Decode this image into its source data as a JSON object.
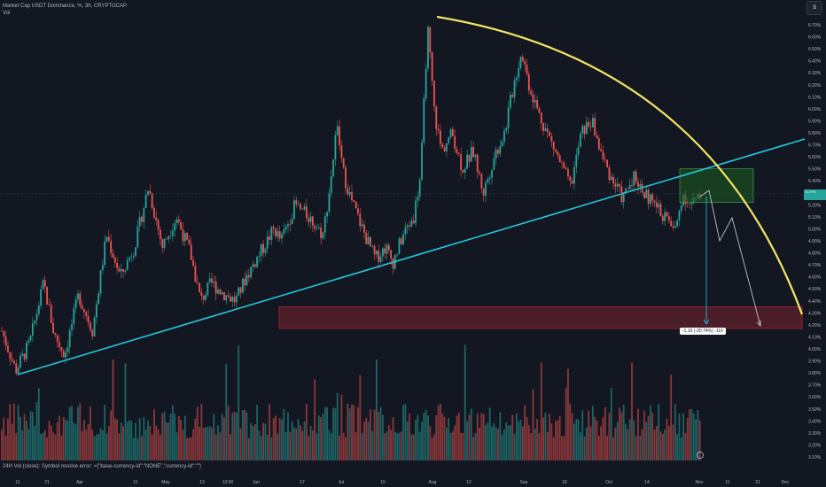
{
  "header": {
    "title": "Market Cap USDT Dominance, %, 3h, CRYPTOCAP",
    "vol_label": "Vol",
    "vol_error": "24H Vol (close): Symbol resolve error: ={\"base-currency-id\":\"NONE\",\"currency-id\":\"\"}",
    "corner_button": "$"
  },
  "chart_data": {
    "type": "candlestick",
    "title": "Market Cap USDT Dominance, %, 3h, CRYPTOCAP",
    "ylim": [
      3.05,
      6.8
    ],
    "y_ticks": [
      "6.70%",
      "6.60%",
      "6.50%",
      "6.40%",
      "6.30%",
      "6.20%",
      "6.10%",
      "6.00%",
      "5.90%",
      "5.80%",
      "5.70%",
      "5.60%",
      "5.50%",
      "5.40%",
      "5.30%",
      "5.20%",
      "5.10%",
      "5.00%",
      "4.90%",
      "4.80%",
      "4.70%",
      "4.60%",
      "4.50%",
      "4.40%",
      "4.30%",
      "4.20%",
      "4.10%",
      "4.00%",
      "3.90%",
      "3.80%",
      "3.70%",
      "3.60%",
      "3.50%",
      "3.40%",
      "3.30%",
      "3.20%",
      "3.10%"
    ],
    "x_ticks": [
      "11",
      "21",
      "Apr",
      "11",
      "May",
      "13",
      "12:00",
      "Jun",
      "17",
      "Jul",
      "15",
      "Aug",
      "12",
      "Sep",
      "16",
      "Oct",
      "14",
      "Nov",
      "11",
      "21",
      "Dec"
    ],
    "price_path": [
      [
        0,
        4.15
      ],
      [
        0.02,
        3.82
      ],
      [
        0.04,
        4.05
      ],
      [
        0.06,
        4.55
      ],
      [
        0.075,
        4.12
      ],
      [
        0.09,
        3.95
      ],
      [
        0.11,
        4.45
      ],
      [
        0.13,
        4.15
      ],
      [
        0.15,
        4.95
      ],
      [
        0.17,
        4.6
      ],
      [
        0.19,
        4.85
      ],
      [
        0.21,
        5.35
      ],
      [
        0.23,
        4.85
      ],
      [
        0.25,
        5.1
      ],
      [
        0.27,
        4.8
      ],
      [
        0.285,
        4.4
      ],
      [
        0.3,
        4.55
      ],
      [
        0.32,
        4.45
      ],
      [
        0.335,
        4.4
      ],
      [
        0.35,
        4.6
      ],
      [
        0.37,
        4.8
      ],
      [
        0.39,
        5.0
      ],
      [
        0.4,
        4.9
      ],
      [
        0.42,
        5.2
      ],
      [
        0.44,
        5.1
      ],
      [
        0.46,
        4.95
      ],
      [
        0.47,
        5.35
      ],
      [
        0.48,
        5.85
      ],
      [
        0.49,
        5.45
      ],
      [
        0.5,
        5.25
      ],
      [
        0.52,
        4.95
      ],
      [
        0.535,
        4.75
      ],
      [
        0.55,
        4.85
      ],
      [
        0.56,
        4.72
      ],
      [
        0.575,
        4.95
      ],
      [
        0.59,
        5.1
      ],
      [
        0.6,
        5.45
      ],
      [
        0.61,
        6.68
      ],
      [
        0.62,
        5.95
      ],
      [
        0.63,
        5.65
      ],
      [
        0.645,
        5.8
      ],
      [
        0.66,
        5.5
      ],
      [
        0.675,
        5.65
      ],
      [
        0.69,
        5.3
      ],
      [
        0.705,
        5.6
      ],
      [
        0.72,
        5.8
      ],
      [
        0.735,
        6.25
      ],
      [
        0.745,
        6.48
      ],
      [
        0.755,
        6.2
      ],
      [
        0.77,
        5.95
      ],
      [
        0.785,
        5.75
      ],
      [
        0.8,
        5.55
      ],
      [
        0.815,
        5.35
      ],
      [
        0.83,
        5.8
      ],
      [
        0.845,
        5.9
      ],
      [
        0.86,
        5.6
      ],
      [
        0.875,
        5.4
      ],
      [
        0.89,
        5.25
      ],
      [
        0.905,
        5.45
      ],
      [
        0.92,
        5.3
      ],
      [
        0.935,
        5.2
      ],
      [
        0.95,
        5.1
      ],
      [
        0.965,
        4.98
      ],
      [
        0.975,
        5.3
      ],
      [
        0.985,
        5.2
      ],
      [
        1,
        5.25
      ]
    ],
    "annotations": {
      "support_line": {
        "from": [
          "Mar 1",
          3.76
        ],
        "to": [
          "Dec",
          5.75
        ],
        "color": "#26c6da"
      },
      "resistance_arc": {
        "from": [
          "Aug 8",
          6.75
        ],
        "to": [
          "Dec",
          4.25
        ],
        "color": "#f5e663"
      },
      "target_zone": {
        "top": 4.35,
        "bottom": 4.17,
        "color": "#b22833"
      },
      "entry_zone": {
        "top": 5.5,
        "bottom": 5.22,
        "color": "#2e7d32"
      },
      "measure_label": "-1.10 (-20.74%) -110"
    },
    "current_price_label": "5.27%",
    "grid": false,
    "legend": "none"
  },
  "colors": {
    "background": "#131722",
    "up": "#26a69a",
    "down": "#ef5350",
    "support": "#26c6da",
    "arc": "#f5e663",
    "text": "#b2b5be"
  }
}
